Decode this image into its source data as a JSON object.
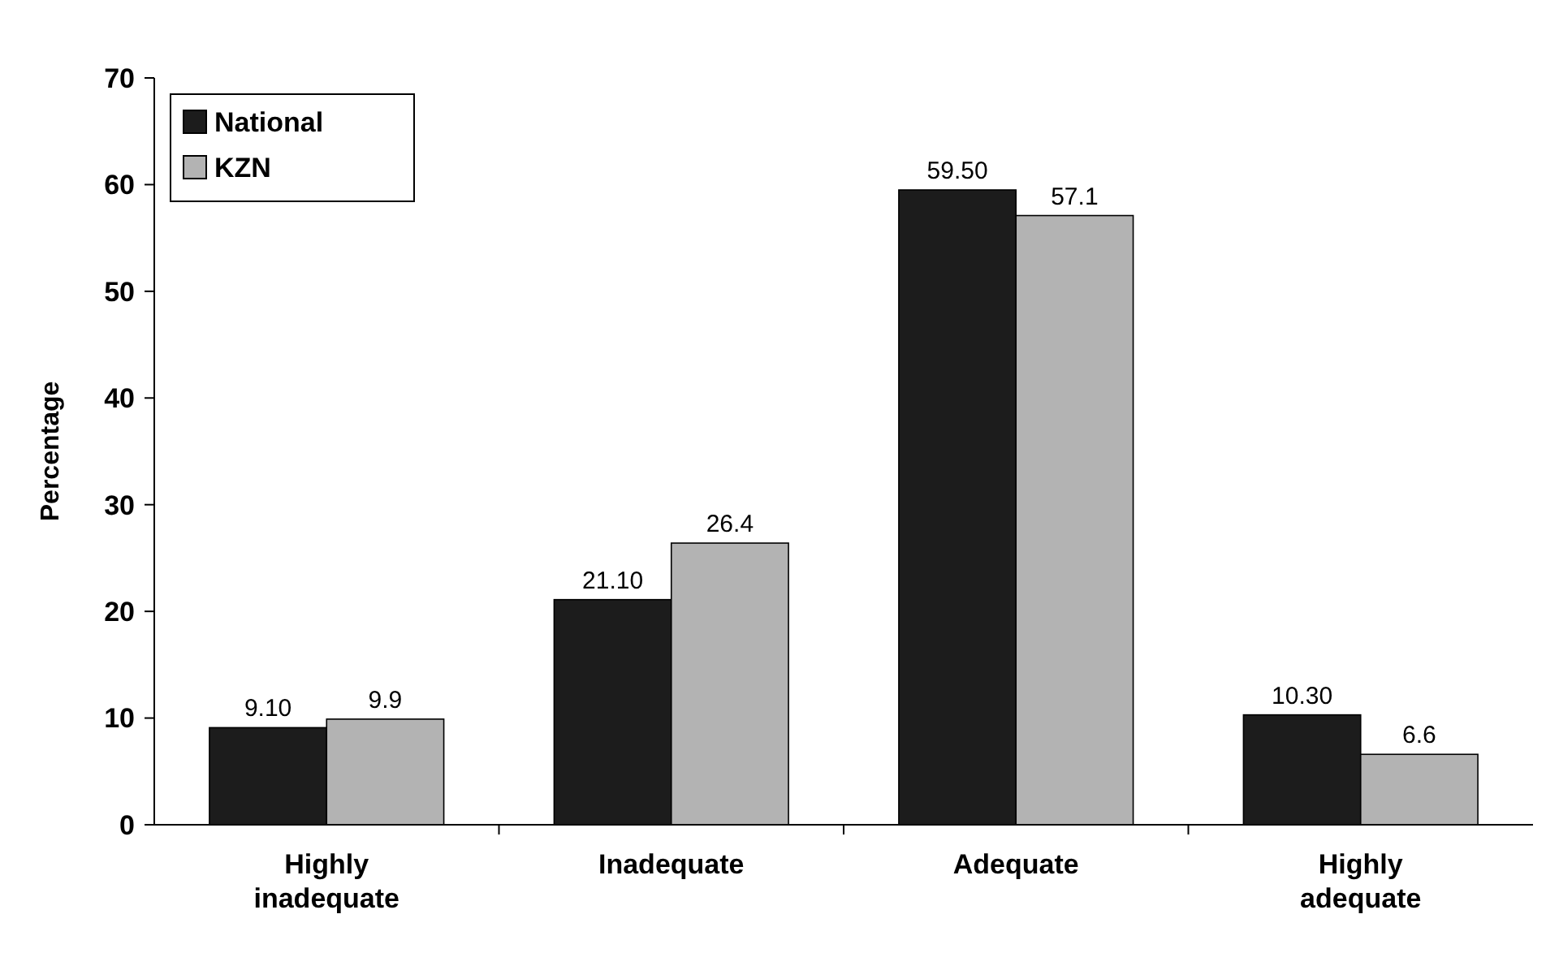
{
  "chart_data": {
    "type": "bar",
    "ylabel": "Percentage",
    "categories": [
      "Highly inadequate",
      "Inadequate",
      "Adequate",
      "Highly adequate"
    ],
    "series": [
      {
        "name": "National",
        "color": "#1c1c1c",
        "values": [
          9.1,
          21.1,
          59.5,
          10.3
        ],
        "value_labels": [
          "9.10",
          "21.10",
          "59.50",
          "10.30"
        ]
      },
      {
        "name": "KZN",
        "color": "#b3b3b3",
        "values": [
          9.9,
          26.4,
          57.1,
          6.6
        ],
        "value_labels": [
          "9.9",
          "26.4",
          "57.1",
          "6.6"
        ]
      }
    ],
    "ylim": [
      0,
      70
    ],
    "yticks": [
      0,
      10,
      20,
      30,
      40,
      50,
      60,
      70
    ],
    "grid": false,
    "legend": "top left"
  }
}
